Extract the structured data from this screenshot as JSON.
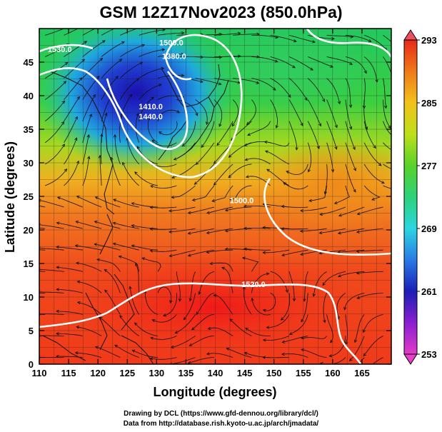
{
  "title": "GSM 12Z17Nov2023 (850.0hPa)",
  "chart_data": {
    "type": "heatmap",
    "title": "GSM 12Z17Nov2023 (850.0hPa)",
    "xlabel": "Longitude (degrees)",
    "ylabel": "Latitude  (degrees)",
    "xlim": [
      110,
      170
    ],
    "ylim": [
      0,
      50
    ],
    "x_ticks": [
      "110",
      "115",
      "120",
      "125",
      "130",
      "135",
      "140",
      "145",
      "150",
      "155",
      "160",
      "165"
    ],
    "y_ticks": [
      "0",
      "5",
      "10",
      "15",
      "20",
      "25",
      "30",
      "35",
      "40",
      "45"
    ],
    "grid": true,
    "colorbar": {
      "ticks": [
        "253",
        "261",
        "269",
        "277",
        "285",
        "293"
      ],
      "colors": [
        "#e23cc8",
        "#8a1fd0",
        "#1a1fb5",
        "#2a7ae6",
        "#2bd6e0",
        "#2ed27a",
        "#58d22a",
        "#bde01a",
        "#f2c21a",
        "#f07a1a",
        "#e8281a"
      ]
    },
    "contours": [
      {
        "label": "1530.0",
        "lon": 113.5,
        "lat": 46.5
      },
      {
        "label": "1380.0",
        "lon": 133,
        "lat": 45.5
      },
      {
        "label": "1500.0",
        "lon": 132.5,
        "lat": 47.5
      },
      {
        "label": "1410.0",
        "lon": 129,
        "lat": 38
      },
      {
        "label": "1440.0",
        "lon": 129,
        "lat": 36.5
      },
      {
        "label": "1500.0",
        "lon": 144.5,
        "lat": 24
      },
      {
        "label": "1520.0",
        "lon": 146.5,
        "lat": 11.5
      }
    ]
  },
  "credits": {
    "line1": "Drawing by DCL (https://www.gfd-dennou.org/library/dcl/)",
    "line2": "Data from http://database.rish.kyoto-u.ac.jp/arch/jmadata/"
  }
}
